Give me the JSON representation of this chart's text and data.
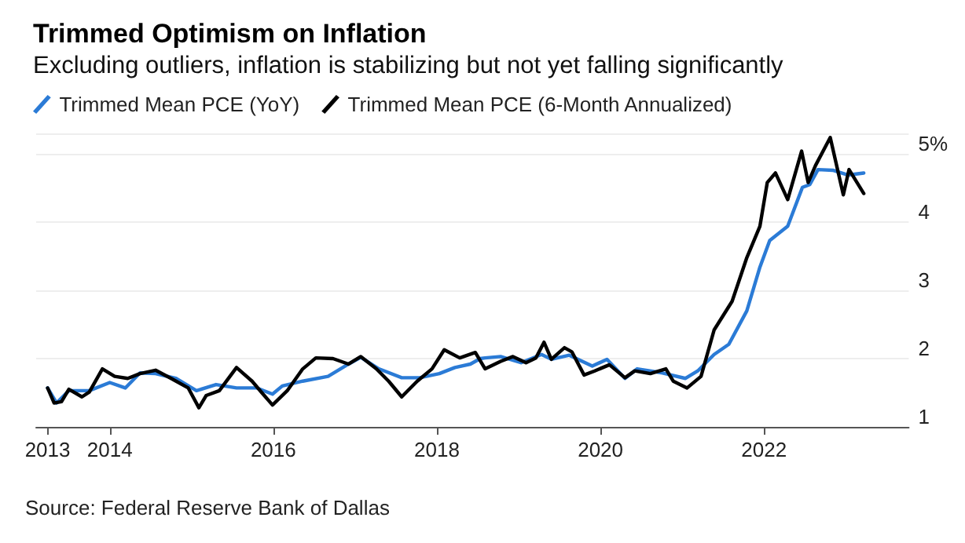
{
  "chart_data": {
    "type": "line",
    "title": "Trimmed Optimism on Inflation",
    "subtitle": "Excluding outliers, inflation is stabilizing but not yet falling significantly",
    "annotations": [
      "Source: Federal Reserve Bank of Dallas"
    ],
    "xlim": [
      2013.1,
      2023.77
    ],
    "xticks": [
      {
        "value": 2013.24,
        "label": "2013"
      },
      2014,
      2016,
      2018,
      2020,
      2022
    ],
    "ylim": [
      1,
      5.3
    ],
    "yticks": [
      1,
      2,
      3,
      4,
      {
        "value": 5,
        "label": "5%"
      },
      {
        "value": 5.3,
        "label": null
      }
    ],
    "grid": "y",
    "legend": "top left",
    "marker": "none",
    "line_style": "solid",
    "series": [
      {
        "name": "Trimmed Mean PCE (YoY)",
        "color": "#2b7bd6",
        "x": [
          2013.24,
          2013.35,
          2013.5,
          2013.75,
          2014,
          2014.19,
          2014.37,
          2014.56,
          2014.81,
          2015.06,
          2015.3,
          2015.55,
          2015.8,
          2015.99,
          2016.11,
          2016.36,
          2016.67,
          2016.92,
          2017.07,
          2017.29,
          2017.57,
          2017.79,
          2018.03,
          2018.22,
          2018.41,
          2018.53,
          2018.59,
          2018.78,
          2019.03,
          2019.28,
          2019.4,
          2019.62,
          2019.9,
          2020.08,
          2020.3,
          2020.45,
          2020.76,
          2021.04,
          2021.19,
          2021.39,
          2021.57,
          2021.79,
          2021.95,
          2022.07,
          2022.29,
          2022.47,
          2022.56,
          2022.66,
          2022.84,
          2023.03,
          2023.22
        ],
        "values": [
          1.57,
          1.35,
          1.53,
          1.53,
          1.65,
          1.57,
          1.79,
          1.78,
          1.71,
          1.53,
          1.62,
          1.57,
          1.57,
          1.48,
          1.6,
          1.67,
          1.74,
          1.92,
          2.02,
          1.85,
          1.72,
          1.72,
          1.78,
          1.87,
          1.92,
          2.0,
          2.01,
          2.03,
          1.94,
          2.06,
          1.99,
          2.05,
          1.89,
          1.99,
          1.71,
          1.85,
          1.79,
          1.71,
          1.82,
          2.06,
          2.21,
          2.7,
          3.34,
          3.73,
          3.94,
          4.51,
          4.55,
          4.77,
          4.76,
          4.69,
          4.72
        ]
      },
      {
        "name": "Trimmed Mean PCE (6-Month Annualized)",
        "color": "#000000",
        "x": [
          2013.24,
          2013.32,
          2013.41,
          2013.5,
          2013.66,
          2013.75,
          2013.91,
          2014.06,
          2014.22,
          2014.37,
          2014.56,
          2014.75,
          2014.96,
          2015.09,
          2015.18,
          2015.34,
          2015.55,
          2015.74,
          2015.86,
          2015.99,
          2016.17,
          2016.36,
          2016.52,
          2016.73,
          2016.92,
          2017.07,
          2017.26,
          2017.41,
          2017.57,
          2017.76,
          2017.94,
          2018.09,
          2018.28,
          2018.47,
          2018.59,
          2018.78,
          2018.93,
          2019.09,
          2019.21,
          2019.31,
          2019.4,
          2019.56,
          2019.65,
          2019.8,
          2019.93,
          2020.11,
          2020.3,
          2020.42,
          2020.61,
          2020.8,
          2020.89,
          2021.06,
          2021.23,
          2021.39,
          2021.61,
          2021.79,
          2021.95,
          2022.04,
          2022.14,
          2022.29,
          2022.46,
          2022.54,
          2022.63,
          2022.81,
          2022.97,
          2023.04,
          2023.22
        ],
        "values": [
          1.57,
          1.35,
          1.37,
          1.55,
          1.44,
          1.51,
          1.85,
          1.74,
          1.71,
          1.78,
          1.83,
          1.71,
          1.57,
          1.28,
          1.46,
          1.53,
          1.87,
          1.67,
          1.5,
          1.32,
          1.53,
          1.85,
          2.01,
          2.0,
          1.92,
          2.03,
          1.85,
          1.67,
          1.44,
          1.67,
          1.85,
          2.13,
          2.01,
          2.09,
          1.85,
          1.96,
          2.03,
          1.94,
          2.01,
          2.24,
          1.99,
          2.16,
          2.1,
          1.76,
          1.82,
          1.91,
          1.72,
          1.82,
          1.78,
          1.85,
          1.67,
          1.57,
          1.74,
          2.42,
          2.84,
          3.48,
          3.94,
          4.58,
          4.72,
          4.33,
          5.04,
          4.58,
          4.83,
          5.24,
          4.4,
          4.77,
          4.42
        ]
      }
    ]
  }
}
